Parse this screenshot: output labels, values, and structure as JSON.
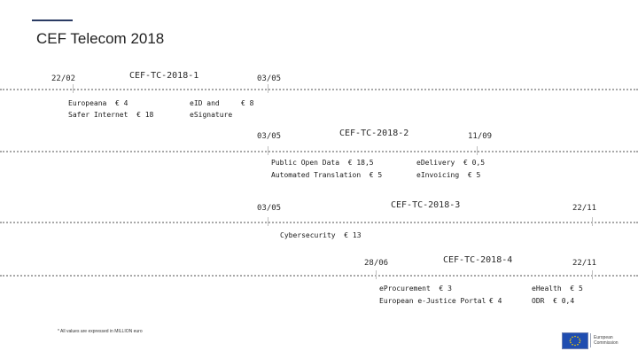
{
  "slide": {
    "title": "CEF Telecom 2018",
    "footnote": "* All values are expressed in MILLION euro",
    "logo": {
      "line1": "European",
      "line2": "Commission"
    }
  },
  "calls": [
    {
      "name": "CEF-TC-2018-1",
      "open": "22/02",
      "close": "03/05",
      "items": [
        {
          "label": "Europeana",
          "value": "€ 4"
        },
        {
          "label": "Safer Internet",
          "value": "€ 18"
        },
        {
          "label": "eID and eSignature",
          "value": "€ 8"
        }
      ]
    },
    {
      "name": "CEF-TC-2018-2",
      "open": "03/05",
      "close": "11/09",
      "items": [
        {
          "label": "Public Open Data",
          "value": "€ 18,5"
        },
        {
          "label": "Automated Translation",
          "value": "€ 5"
        },
        {
          "label": "eDelivery",
          "value": "€ 0,5"
        },
        {
          "label": "eInvoicing",
          "value": "€ 5"
        }
      ]
    },
    {
      "name": "CEF-TC-2018-3",
      "open": "03/05",
      "close": "22/11",
      "items": [
        {
          "label": "Cybersecurity",
          "value": "€ 13"
        }
      ]
    },
    {
      "name": "CEF-TC-2018-4",
      "open": "28/06",
      "close": "22/11",
      "items": [
        {
          "label": "eProcurement",
          "value": "€ 3"
        },
        {
          "label": "European e-Justice Portal",
          "value": "€ 4"
        },
        {
          "label": "eHealth",
          "value": "€ 5"
        },
        {
          "label": "ODR",
          "value": "€ 0,4"
        }
      ]
    }
  ]
}
